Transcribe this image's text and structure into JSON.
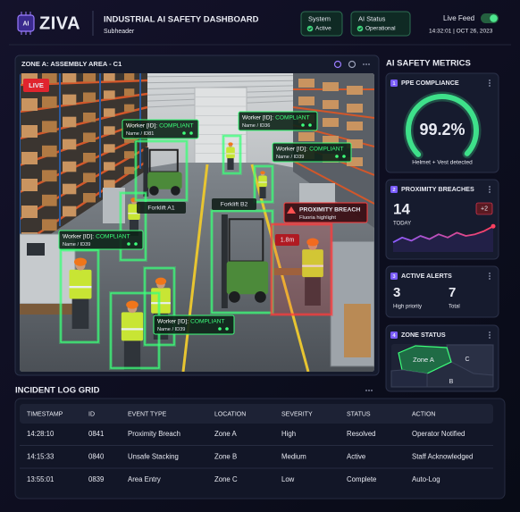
{
  "header": {
    "logo_mark": "AI",
    "brand": "ZIVA",
    "title": "INDUSTRIAL AI SAFETY DASHBOARD",
    "subtitle": "Subheader",
    "status": [
      {
        "label": "System",
        "value": "Active"
      },
      {
        "label": "AI Status",
        "value": "Operational"
      }
    ],
    "live_feed": "Live Feed",
    "timestamp": "14:32:01 | OCT 26, 2023"
  },
  "camera": {
    "title": "ZONE A: ASSEMBLY AREA - C1",
    "live": "LIVE",
    "detections": [
      {
        "prefix": "Worker [ID]:",
        "status": "COMPLIANT",
        "sub": "Name / ID81"
      },
      {
        "prefix": "Worker [ID]:",
        "status": "COMPLIANT",
        "sub": "Name / ID36"
      },
      {
        "prefix": "Worker [ID]:",
        "status": "COMPLIANT",
        "sub": "Name / ID39"
      },
      {
        "prefix": "Worker [ID]:",
        "status": "COMPLIANT",
        "sub": "Name / ID39"
      },
      {
        "prefix": "Worker [ID]:",
        "status": "COMPLIANT",
        "sub": "Name / ID39"
      }
    ],
    "forklifts": [
      "Forklift A1",
      "Forklift B2"
    ],
    "alert": {
      "label": "PROXIMITY BREACH",
      "sub": "Fluoria highlight",
      "distance": "1.8m"
    }
  },
  "metrics": {
    "title": "AI SAFETY METRICS",
    "ppe": {
      "index": "1",
      "title": "PPE COMPLIANCE",
      "value": 99.2,
      "value_label": "99.2%",
      "lim": [
        0,
        100
      ],
      "caption": "Helmet + Vest detected"
    },
    "proximity": {
      "index": "2",
      "title": "PROXIMITY BREACHES",
      "count": "14",
      "period": "TODAY",
      "change": "+2",
      "trend": [
        3,
        4.5,
        3.5,
        5,
        4,
        5.5,
        4.5,
        6,
        5,
        5.5,
        6.5,
        8
      ],
      "trend_lim": [
        0,
        10
      ]
    },
    "alerts": {
      "index": "3",
      "title": "ACTIVE ALERTS",
      "high": "3",
      "high_label": "High priority",
      "total": "7",
      "total_label": "Total"
    },
    "zones": {
      "index": "4",
      "title": "ZONE STATUS",
      "labels": [
        "Zone A",
        "C",
        "B"
      ]
    }
  },
  "incident_log": {
    "title": "INCIDENT LOG GRID",
    "columns": [
      "TIMESTAMP",
      "ID",
      "EVENT TYPE",
      "LOCATION",
      "SEVERITY",
      "STATUS",
      "ACTION"
    ],
    "rows": [
      [
        "14:28:10",
        "0841",
        "Proximity Breach",
        "Zone A",
        "High",
        "Resolved",
        "Operator Notified"
      ],
      [
        "14:15:33",
        "0840",
        "Unsafe Stacking",
        "Zone B",
        "Medium",
        "Active",
        "Staff Acknowledged"
      ],
      [
        "13:55:01",
        "0839",
        "Area Entry",
        "Zone C",
        "Low",
        "Complete",
        "Auto-Log"
      ]
    ],
    "severity_colors": [
      "#ff4d4d",
      "#f2a325",
      "#3fd27c"
    ],
    "status_colors": [
      "#3fd27c",
      "#ff4d4d",
      "#3fd27c"
    ]
  }
}
